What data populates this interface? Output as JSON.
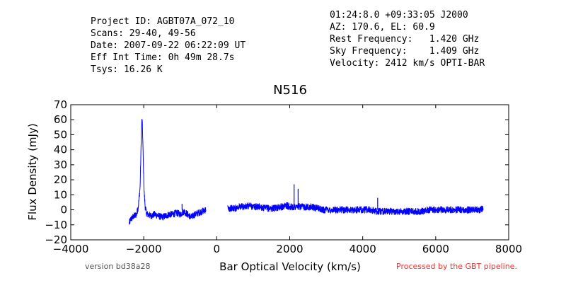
{
  "header": {
    "left_lines": [
      "Project ID: AGBT07A_072_10",
      "Scans: 29-40, 49-56",
      "Date: 2007-09-22 06:22:09 UT",
      "Eff Int Time: 0h 49m 28.7s",
      "Tsys: 16.26 K"
    ],
    "right_lines": [
      "01:24:8.0 +09:33:05 J2000",
      "AZ: 170.6, EL: 60.9",
      "Rest Frequency:   1.420 GHz",
      "Sky Frequency:    1.409 GHz",
      "Velocity: 2412 km/s OPTI-BAR"
    ]
  },
  "footer": {
    "version": "version bd38a28",
    "processed": "Processed by the GBT pipeline.",
    "processed_color": "#ee3333"
  },
  "colors": {
    "line": "#0000ff"
  },
  "chart_data": {
    "type": "line",
    "title": "N516",
    "xlabel": "Bar Optical Velocity (km/s)",
    "ylabel": "Flux Density (mJy)",
    "xlim": [
      -4000,
      8000
    ],
    "ylim": [
      -20,
      70
    ],
    "xticks": [
      -4000,
      -2000,
      0,
      2000,
      4000,
      6000,
      8000
    ],
    "yticks": [
      -20,
      -10,
      0,
      10,
      20,
      30,
      40,
      50,
      60,
      70
    ],
    "grid": false,
    "series": [
      {
        "segments": [
          [
            [
              -2400,
              -9
            ],
            [
              -2350,
              -6
            ],
            [
              -2300,
              -5
            ],
            [
              -2250,
              -4
            ],
            [
              -2200,
              -3
            ],
            [
              -2150,
              2
            ],
            [
              -2100,
              15
            ],
            [
              -2080,
              35
            ],
            [
              -2060,
              55
            ],
            [
              -2045,
              61
            ],
            [
              -2030,
              50
            ],
            [
              -2010,
              30
            ],
            [
              -1990,
              12
            ],
            [
              -1960,
              2
            ],
            [
              -1930,
              -2
            ],
            [
              -1900,
              -3
            ],
            [
              -1800,
              -4
            ],
            [
              -1700,
              -3
            ],
            [
              -1600,
              -4
            ],
            [
              -1500,
              -5
            ],
            [
              -1400,
              -4
            ],
            [
              -1300,
              -3
            ],
            [
              -1200,
              -3
            ],
            [
              -1100,
              -2
            ],
            [
              -1000,
              -3
            ],
            [
              -900,
              -1
            ],
            [
              -800,
              -3
            ],
            [
              -700,
              -5
            ],
            [
              -600,
              -3
            ],
            [
              -500,
              -2
            ],
            [
              -400,
              -1
            ],
            [
              -300,
              0
            ]
          ],
          [
            [
              300,
              1
            ],
            [
              400,
              1
            ],
            [
              500,
              1
            ],
            [
              600,
              2
            ],
            [
              700,
              2
            ],
            [
              800,
              2
            ],
            [
              900,
              3
            ],
            [
              1000,
              2
            ],
            [
              1100,
              2
            ],
            [
              1200,
              2
            ],
            [
              1300,
              1
            ],
            [
              1400,
              1
            ],
            [
              1500,
              1
            ],
            [
              1600,
              1
            ],
            [
              1700,
              2
            ],
            [
              1800,
              2
            ],
            [
              1900,
              3
            ],
            [
              2000,
              2
            ],
            [
              2100,
              2
            ],
            [
              2200,
              2
            ],
            [
              2300,
              2
            ],
            [
              2400,
              2
            ],
            [
              2500,
              2
            ],
            [
              2600,
              2
            ],
            [
              2700,
              1
            ],
            [
              2800,
              1
            ],
            [
              2900,
              0
            ],
            [
              3000,
              0
            ],
            [
              3200,
              0
            ],
            [
              3400,
              0
            ],
            [
              3600,
              0
            ],
            [
              3800,
              0
            ],
            [
              4000,
              0
            ],
            [
              4200,
              0
            ],
            [
              4400,
              -1
            ],
            [
              4600,
              -1
            ],
            [
              4800,
              -1
            ],
            [
              5000,
              -1
            ],
            [
              5200,
              -1
            ],
            [
              5400,
              -1
            ],
            [
              5600,
              -1
            ],
            [
              5800,
              0
            ],
            [
              6000,
              0
            ],
            [
              6200,
              0
            ],
            [
              6400,
              0
            ],
            [
              6600,
              0
            ],
            [
              6800,
              0
            ],
            [
              7000,
              0
            ],
            [
              7200,
              0
            ],
            [
              7300,
              1
            ]
          ]
        ],
        "spikes": [
          [
            2120,
            17
          ],
          [
            2230,
            14
          ],
          [
            4410,
            8
          ],
          [
            -950,
            4
          ]
        ]
      }
    ]
  }
}
